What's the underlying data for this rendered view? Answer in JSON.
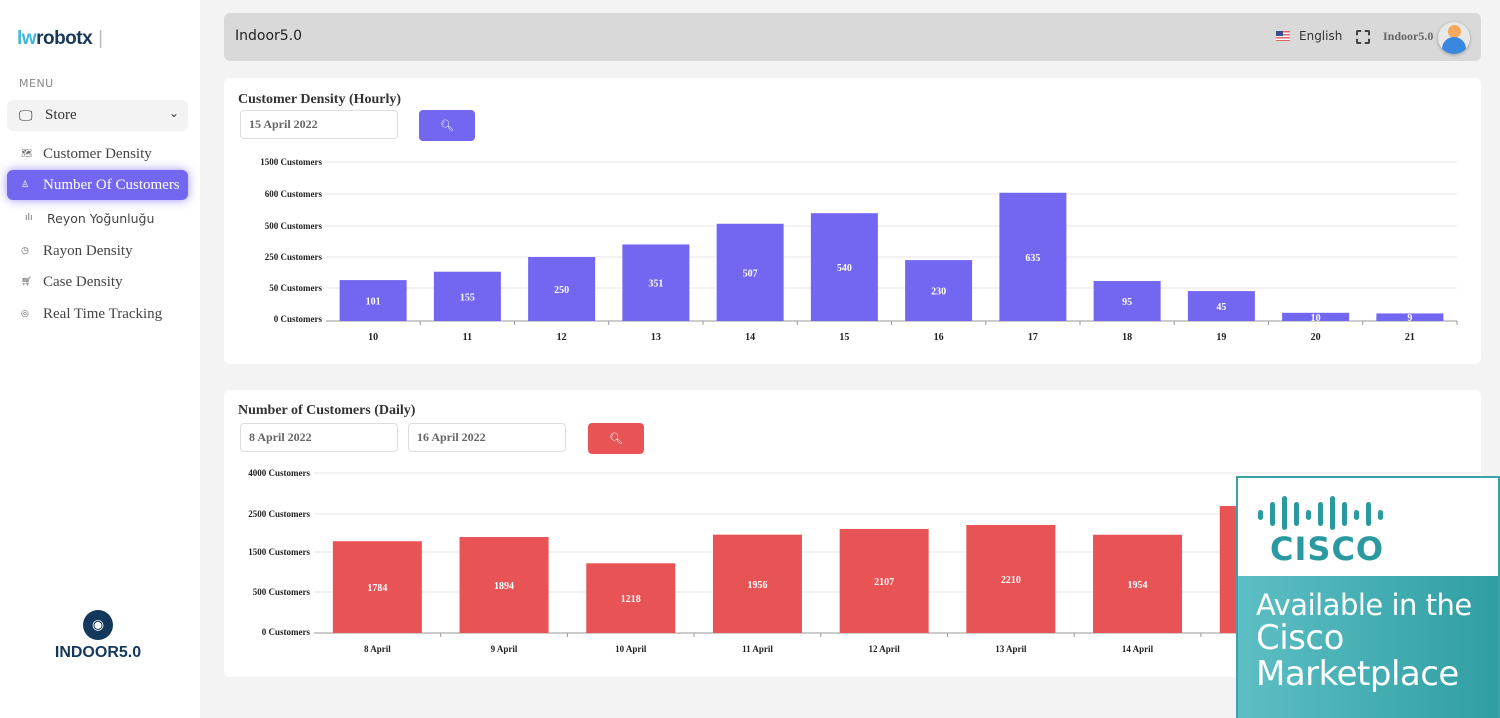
{
  "sidebar": {
    "logo_a": "lw",
    "logo_b": "robotx",
    "menu_label": "MENU",
    "store": "Store",
    "items": [
      {
        "label": "Customer Density",
        "icon": "map-icon"
      },
      {
        "label": "Number Of Customers",
        "icon": "user-icon",
        "active": true
      },
      {
        "label": "Reyon Yoğunluğu",
        "icon": "bar-chart-icon"
      },
      {
        "label": "Rayon Density",
        "icon": "clock-icon"
      },
      {
        "label": "Case Density",
        "icon": "cart-icon"
      },
      {
        "label": "Real Time Tracking",
        "icon": "location-icon"
      }
    ],
    "bottom_brand": "INDOOR5.0"
  },
  "header": {
    "title": "Indoor5.0",
    "language": "English",
    "username": "Indoor5.0"
  },
  "hourly": {
    "title": "Customer Density (Hourly)",
    "date": "15 April 2022",
    "color": "#7366f0"
  },
  "daily": {
    "title": "Number of Customers (Daily)",
    "start_date": "8 April 2022",
    "end_date": "16 April 2022",
    "color": "#e85456"
  },
  "overlay": {
    "brand": "CISCO",
    "line1": "Available in the",
    "line2": "Cisco",
    "line3": "Marketplace"
  },
  "chart_data": [
    {
      "type": "bar",
      "title": "Customer Density (Hourly)",
      "categories": [
        "10",
        "11",
        "12",
        "13",
        "14",
        "15",
        "16",
        "17",
        "18",
        "19",
        "20",
        "21"
      ],
      "values": [
        101,
        155,
        250,
        351,
        507,
        540,
        230,
        635,
        95,
        45,
        10,
        9
      ],
      "yticks": [
        0,
        50,
        250,
        500,
        600,
        1500
      ],
      "ytick_labels": [
        "0 Customers",
        "50 Customers",
        "250 Customers",
        "500 Customers",
        "600 Customers",
        "1500 Customers"
      ],
      "grid": true
    },
    {
      "type": "bar",
      "title": "Number of Customers (Daily)",
      "categories": [
        "8 April",
        "9 April",
        "10 April",
        "11 April",
        "12 April",
        "13 April",
        "14 April"
      ],
      "values": [
        1784,
        1894,
        1218,
        1956,
        2107,
        2210,
        1954
      ],
      "yticks": [
        0,
        500,
        1500,
        2500,
        4000
      ],
      "ytick_labels": [
        "0 Customers",
        "500 Customers",
        "1500 Customers",
        "2500 Customers",
        "4000 Customers"
      ],
      "grid": true
    }
  ]
}
